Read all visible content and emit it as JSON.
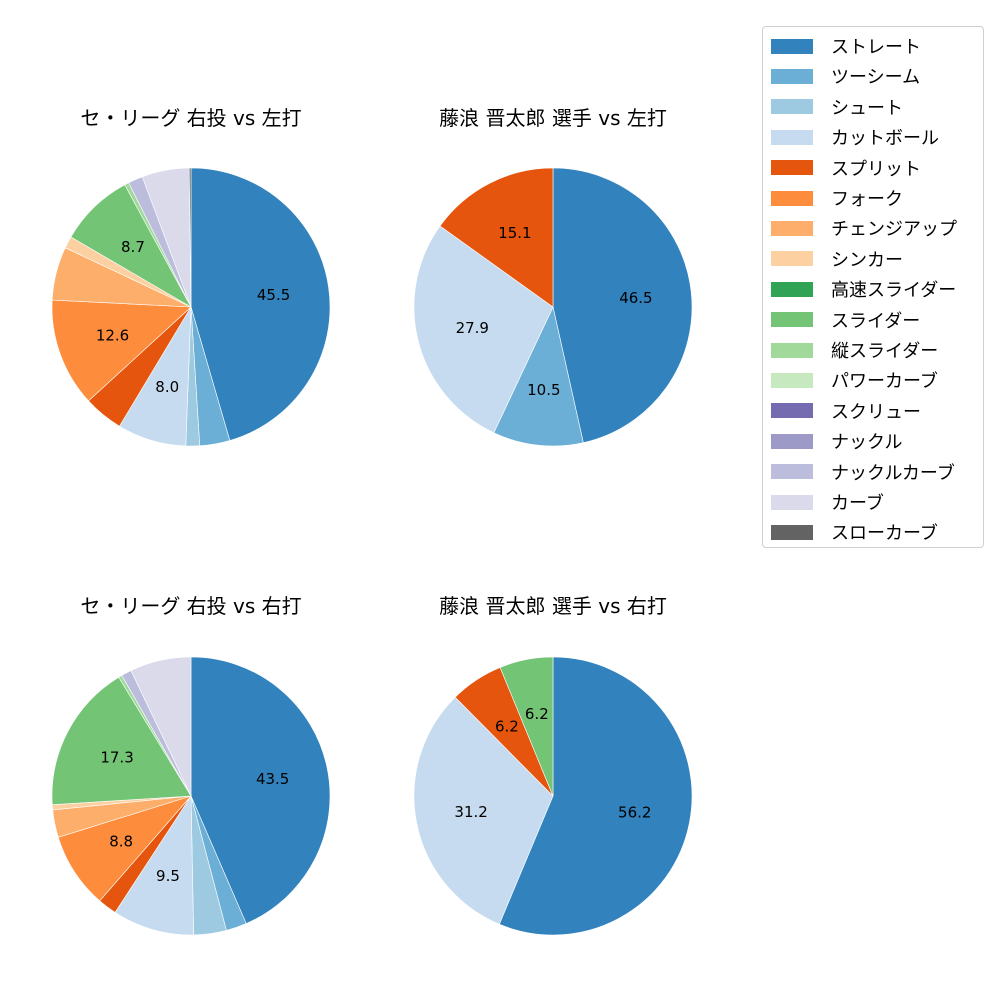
{
  "legend": {
    "items": [
      {
        "label": "ストレート",
        "color": "#3182bd"
      },
      {
        "label": "ツーシーム",
        "color": "#6baed6"
      },
      {
        "label": "シュート",
        "color": "#9ecae1"
      },
      {
        "label": "カットボール",
        "color": "#c6dbef"
      },
      {
        "label": "スプリット",
        "color": "#e6550d"
      },
      {
        "label": "フォーク",
        "color": "#fd8d3c"
      },
      {
        "label": "チェンジアップ",
        "color": "#fdae6b"
      },
      {
        "label": "シンカー",
        "color": "#fdd0a2"
      },
      {
        "label": "高速スライダー",
        "color": "#31a354"
      },
      {
        "label": "スライダー",
        "color": "#74c476"
      },
      {
        "label": "縦スライダー",
        "color": "#a1d99b"
      },
      {
        "label": "パワーカーブ",
        "color": "#c7e9c0"
      },
      {
        "label": "スクリュー",
        "color": "#756bb1"
      },
      {
        "label": "ナックル",
        "color": "#9e9ac8"
      },
      {
        "label": "ナックルカーブ",
        "color": "#bcbddc"
      },
      {
        "label": "カーブ",
        "color": "#dadaeb"
      },
      {
        "label": "スローカーブ",
        "color": "#636363"
      }
    ]
  },
  "chart_data": [
    {
      "type": "pie",
      "title": "セ・リーグ 右投 vs 左打",
      "position": "top-left",
      "start_angle_deg": 90,
      "direction": "clockwise",
      "slices": [
        {
          "label": "ストレート",
          "value": 45.5,
          "shown": "45.5"
        },
        {
          "label": "ツーシーム",
          "value": 3.5
        },
        {
          "label": "シュート",
          "value": 1.6
        },
        {
          "label": "カットボール",
          "value": 8.0,
          "shown": "8.0"
        },
        {
          "label": "スプリット",
          "value": 4.6
        },
        {
          "label": "フォーク",
          "value": 12.6,
          "shown": "12.6"
        },
        {
          "label": "チェンジアップ",
          "value": 6.2
        },
        {
          "label": "シンカー",
          "value": 1.4
        },
        {
          "label": "スライダー",
          "value": 8.7,
          "shown": "8.7"
        },
        {
          "label": "縦スライダー",
          "value": 0.5
        },
        {
          "label": "ナックルカーブ",
          "value": 1.7
        },
        {
          "label": "カーブ",
          "value": 5.5
        },
        {
          "label": "スローカーブ",
          "value": 0.2
        }
      ]
    },
    {
      "type": "pie",
      "title": "藤浪 晋太郎 選手 vs 左打",
      "position": "top-right",
      "start_angle_deg": 90,
      "direction": "clockwise",
      "slices": [
        {
          "label": "ストレート",
          "value": 46.5,
          "shown": "46.5"
        },
        {
          "label": "ツーシーム",
          "value": 10.5,
          "shown": "10.5"
        },
        {
          "label": "カットボール",
          "value": 27.9,
          "shown": "27.9"
        },
        {
          "label": "スプリット",
          "value": 15.1,
          "shown": "15.1"
        }
      ]
    },
    {
      "type": "pie",
      "title": "セ・リーグ 右投 vs 右打",
      "position": "bottom-left",
      "start_angle_deg": 90,
      "direction": "clockwise",
      "slices": [
        {
          "label": "ストレート",
          "value": 43.5,
          "shown": "43.5"
        },
        {
          "label": "ツーシーム",
          "value": 2.4
        },
        {
          "label": "シュート",
          "value": 3.8
        },
        {
          "label": "カットボール",
          "value": 9.5,
          "shown": "9.5"
        },
        {
          "label": "スプリット",
          "value": 2.2
        },
        {
          "label": "フォーク",
          "value": 8.8,
          "shown": "8.8"
        },
        {
          "label": "チェンジアップ",
          "value": 3.2
        },
        {
          "label": "シンカー",
          "value": 0.6
        },
        {
          "label": "スライダー",
          "value": 17.3,
          "shown": "17.3"
        },
        {
          "label": "縦スライダー",
          "value": 0.4
        },
        {
          "label": "ナックルカーブ",
          "value": 1.2
        },
        {
          "label": "カーブ",
          "value": 7.1
        }
      ]
    },
    {
      "type": "pie",
      "title": "藤浪 晋太郎 選手 vs 右打",
      "position": "bottom-right",
      "start_angle_deg": 90,
      "direction": "clockwise",
      "slices": [
        {
          "label": "ストレート",
          "value": 56.2,
          "shown": "56.2"
        },
        {
          "label": "カットボール",
          "value": 31.2,
          "shown": "31.2"
        },
        {
          "label": "スプリット",
          "value": 6.2,
          "shown": "6.2"
        },
        {
          "label": "スライダー",
          "value": 6.2,
          "shown": "6.2"
        }
      ]
    }
  ]
}
